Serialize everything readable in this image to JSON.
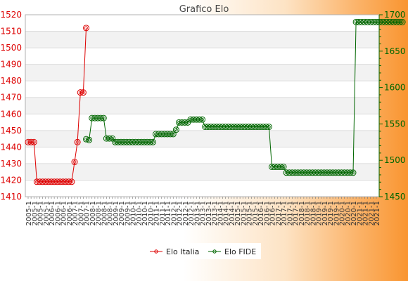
{
  "chart_data": {
    "type": "line",
    "title": "Grafico Elo",
    "grid": true,
    "legend_position": "bottom",
    "y_left": {
      "min": 1410,
      "max": 1520,
      "step": 10,
      "color": "#dd0000",
      "ticks": [
        "1410",
        "1420",
        "1430",
        "1440",
        "1450",
        "1460",
        "1470",
        "1480",
        "1490",
        "1500",
        "1510",
        "1520"
      ]
    },
    "y_right": {
      "min": 1450,
      "max": 1700,
      "step": 50,
      "color": "#006600",
      "ticks": [
        "1450",
        "1500",
        "1550",
        "1600",
        "1650",
        "1700"
      ]
    },
    "x_count": 121,
    "x_labels_visible": [
      "2005-1",
      "2006-1",
      "2007-1",
      "2008-1",
      "2009-1",
      "2010-1",
      "2011-1",
      "2012-1",
      "2013-1",
      "2014-1",
      "2015-1",
      "2016-1",
      "2017-1",
      "2018-1",
      "2019-1",
      "2020-1",
      "2021-1"
    ],
    "series": [
      {
        "name": "Elo Italia",
        "axis": "left",
        "color": "#dd0000",
        "segments": [
          [
            0,
            1443
          ],
          [
            2,
            1443
          ],
          [
            3,
            1419
          ],
          [
            15,
            1419
          ],
          [
            16,
            1431
          ],
          [
            17,
            1443
          ],
          [
            18,
            1473
          ],
          [
            19,
            1473
          ],
          [
            20,
            1512
          ]
        ]
      },
      {
        "name": "Elo FIDE",
        "axis": "right",
        "color": "#006600",
        "segments": [
          [
            20,
            1529
          ],
          [
            21,
            1528
          ],
          [
            22,
            1558
          ],
          [
            26,
            1558
          ],
          [
            27,
            1530
          ],
          [
            29,
            1530
          ],
          [
            30,
            1525
          ],
          [
            43,
            1525
          ],
          [
            44,
            1536
          ],
          [
            50,
            1536
          ],
          [
            51,
            1542
          ],
          [
            52,
            1552
          ],
          [
            55,
            1552
          ],
          [
            56,
            1556
          ],
          [
            60,
            1556
          ],
          [
            61,
            1546
          ],
          [
            83,
            1546
          ],
          [
            84,
            1491
          ],
          [
            88,
            1491
          ],
          [
            89,
            1483
          ],
          [
            112,
            1483
          ],
          [
            113,
            1690
          ],
          [
            129,
            1690
          ]
        ]
      }
    ]
  }
}
